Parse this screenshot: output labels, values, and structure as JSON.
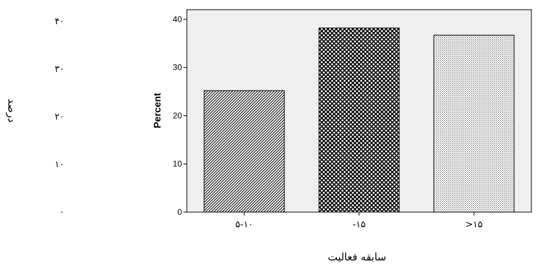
{
  "chart_data": {
    "type": "bar",
    "categories": [
      "۵-۱۰",
      "-۱۵",
      ">۱۵"
    ],
    "values": [
      25.2,
      38.2,
      36.7
    ],
    "patterns": [
      "diagonal-hatch",
      "crosshatch",
      "dense-dots"
    ],
    "ylabel": "Percent",
    "ylabel_fa": "درصد",
    "xlabel_fa": "سابقه فعالیت",
    "ylim": [
      0,
      42
    ],
    "yticks": [
      0,
      10,
      20,
      30,
      40
    ],
    "yticks_fa": [
      "۰",
      "۱۰",
      "۲۰",
      "۳۰",
      "۴۰"
    ],
    "grid": false,
    "plot_background": "#efefef",
    "bar_outline": "#000000"
  }
}
